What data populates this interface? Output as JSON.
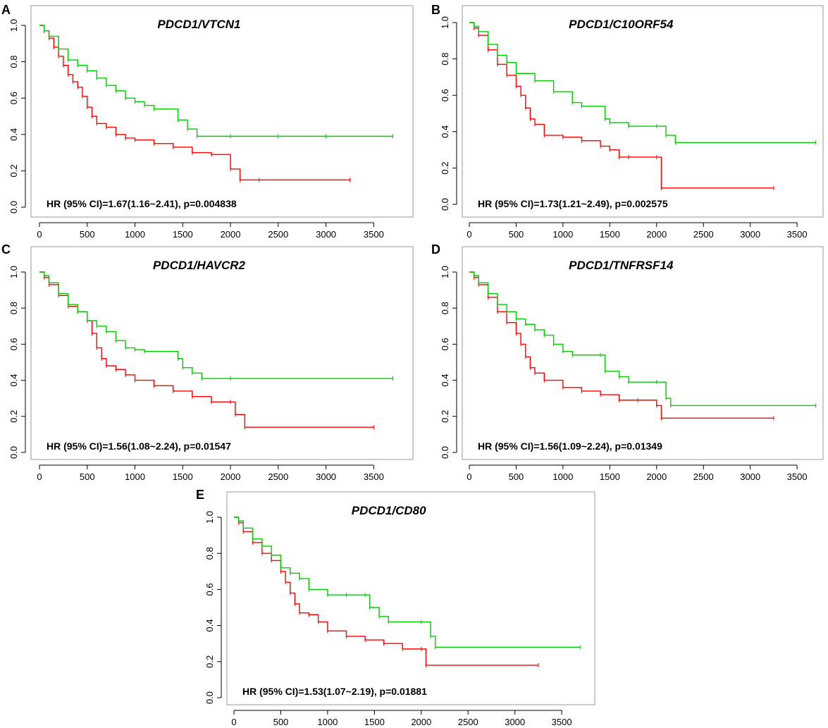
{
  "colors": {
    "high": "#ff0000",
    "low": "#00cc00",
    "axis": "#000000",
    "frame": "#999999"
  },
  "chart_data": [
    {
      "type": "line",
      "panel_label": "A",
      "title": "PDCD1/VTCN1",
      "annotation": "HR (95% CI)=1.67(1.16~2.41), p=0.004838",
      "xlim": [
        0,
        3800
      ],
      "ylim": [
        0,
        1.05
      ],
      "xticks": [
        "0",
        "500",
        "1000",
        "1500",
        "2000",
        "2500",
        "3000",
        "3500"
      ],
      "yticks": [
        "0.0",
        "0.2",
        "0.4",
        "0.6",
        "0.8",
        "1.0"
      ],
      "series": [
        {
          "name": "high",
          "color": "#ff0000",
          "x": [
            0,
            50,
            100,
            150,
            200,
            250,
            300,
            350,
            400,
            450,
            500,
            550,
            600,
            700,
            800,
            900,
            1000,
            1200,
            1400,
            1600,
            1800,
            2000,
            2100,
            2300,
            3250
          ],
          "y": [
            1.0,
            0.97,
            0.93,
            0.88,
            0.83,
            0.78,
            0.73,
            0.69,
            0.66,
            0.61,
            0.55,
            0.5,
            0.46,
            0.44,
            0.4,
            0.38,
            0.37,
            0.35,
            0.33,
            0.3,
            0.29,
            0.21,
            0.15,
            0.15,
            0.15
          ]
        },
        {
          "name": "low",
          "color": "#00cc00",
          "x": [
            0,
            50,
            100,
            200,
            300,
            400,
            500,
            600,
            700,
            800,
            900,
            1000,
            1100,
            1200,
            1450,
            1550,
            1650,
            2000,
            2500,
            3000,
            3700
          ],
          "y": [
            1.0,
            0.97,
            0.94,
            0.87,
            0.81,
            0.78,
            0.75,
            0.71,
            0.67,
            0.64,
            0.6,
            0.58,
            0.56,
            0.54,
            0.48,
            0.43,
            0.39,
            0.39,
            0.39,
            0.39,
            0.39
          ]
        }
      ]
    },
    {
      "type": "line",
      "panel_label": "B",
      "title": "PDCD1/C10ORF54",
      "annotation": "HR (95% CI)=1.73(1.21~2.49), p=0.002575",
      "xlim": [
        0,
        3800
      ],
      "ylim": [
        0,
        1.05
      ],
      "xticks": [
        "0",
        "500",
        "1000",
        "1500",
        "2000",
        "2500",
        "3000",
        "3500"
      ],
      "yticks": [
        "0.0",
        "0.2",
        "0.4",
        "0.6",
        "0.8",
        "1.0"
      ],
      "series": [
        {
          "name": "high",
          "color": "#ff0000",
          "x": [
            0,
            50,
            100,
            200,
            300,
            400,
            500,
            550,
            600,
            650,
            700,
            800,
            1000,
            1200,
            1400,
            1500,
            1600,
            1700,
            2000,
            2050,
            3250
          ],
          "y": [
            1.0,
            0.97,
            0.93,
            0.85,
            0.77,
            0.71,
            0.65,
            0.6,
            0.53,
            0.47,
            0.44,
            0.38,
            0.37,
            0.35,
            0.32,
            0.3,
            0.26,
            0.26,
            0.26,
            0.09,
            0.09
          ]
        },
        {
          "name": "low",
          "color": "#00cc00",
          "x": [
            0,
            50,
            100,
            200,
            300,
            400,
            500,
            700,
            900,
            1100,
            1200,
            1450,
            1500,
            1700,
            2000,
            2100,
            2200,
            3700
          ],
          "y": [
            1.0,
            0.98,
            0.95,
            0.88,
            0.82,
            0.78,
            0.72,
            0.68,
            0.62,
            0.56,
            0.54,
            0.47,
            0.45,
            0.43,
            0.43,
            0.38,
            0.34,
            0.34
          ]
        }
      ]
    },
    {
      "type": "line",
      "panel_label": "C",
      "title": "PDCD1/HAVCR2",
      "annotation": "HR (95% CI)=1.56(1.08~2.24), p=0.01547",
      "xlim": [
        0,
        3800
      ],
      "ylim": [
        0,
        1.05
      ],
      "xticks": [
        "0",
        "500",
        "1000",
        "1500",
        "2000",
        "2500",
        "3000",
        "3500"
      ],
      "yticks": [
        "0.0",
        "0.2",
        "0.4",
        "0.6",
        "0.8",
        "1.0"
      ],
      "series": [
        {
          "name": "high",
          "color": "#ff0000",
          "x": [
            0,
            50,
            100,
            200,
            300,
            400,
            500,
            550,
            600,
            650,
            700,
            800,
            900,
            1000,
            1200,
            1400,
            1600,
            1800,
            2000,
            2050,
            2150,
            3500
          ],
          "y": [
            1.0,
            0.97,
            0.93,
            0.87,
            0.81,
            0.78,
            0.73,
            0.66,
            0.58,
            0.52,
            0.48,
            0.46,
            0.43,
            0.4,
            0.37,
            0.34,
            0.31,
            0.28,
            0.28,
            0.21,
            0.14,
            0.14
          ]
        },
        {
          "name": "low",
          "color": "#00cc00",
          "x": [
            0,
            50,
            100,
            200,
            300,
            400,
            500,
            600,
            700,
            800,
            900,
            1000,
            1100,
            1450,
            1500,
            1600,
            1700,
            2000,
            3700
          ],
          "y": [
            1.0,
            0.98,
            0.94,
            0.88,
            0.82,
            0.78,
            0.73,
            0.7,
            0.67,
            0.62,
            0.58,
            0.57,
            0.56,
            0.52,
            0.47,
            0.44,
            0.41,
            0.41,
            0.41
          ]
        }
      ]
    },
    {
      "type": "line",
      "panel_label": "D",
      "title": "PDCD1/TNFRSF14",
      "annotation": "HR (95% CI)=1.56(1.09~2.24), p=0.01349",
      "xlim": [
        0,
        3800
      ],
      "ylim": [
        0,
        1.05
      ],
      "xticks": [
        "0",
        "500",
        "1000",
        "1500",
        "2000",
        "2500",
        "3000",
        "3500"
      ],
      "yticks": [
        "0.0",
        "0.2",
        "0.4",
        "0.6",
        "0.8",
        "1.0"
      ],
      "series": [
        {
          "name": "high",
          "color": "#ff0000",
          "x": [
            0,
            50,
            100,
            200,
            300,
            400,
            500,
            550,
            600,
            650,
            700,
            800,
            1000,
            1200,
            1400,
            1600,
            1800,
            2000,
            2050,
            3250
          ],
          "y": [
            1.0,
            0.97,
            0.93,
            0.86,
            0.78,
            0.72,
            0.66,
            0.6,
            0.53,
            0.47,
            0.44,
            0.4,
            0.36,
            0.34,
            0.32,
            0.29,
            0.29,
            0.26,
            0.19,
            0.19
          ]
        },
        {
          "name": "low",
          "color": "#00cc00",
          "x": [
            0,
            50,
            100,
            200,
            300,
            400,
            500,
            600,
            700,
            800,
            900,
            1000,
            1100,
            1400,
            1450,
            1600,
            1700,
            2000,
            2100,
            2150,
            3700
          ],
          "y": [
            1.0,
            0.98,
            0.94,
            0.88,
            0.82,
            0.78,
            0.74,
            0.71,
            0.68,
            0.65,
            0.6,
            0.56,
            0.54,
            0.54,
            0.45,
            0.42,
            0.39,
            0.39,
            0.3,
            0.26,
            0.26
          ]
        }
      ]
    },
    {
      "type": "line",
      "panel_label": "E",
      "title": "PDCD1/CD80",
      "annotation": "HR (95% CI)=1.53(1.07~2.19), p=0.01881",
      "xlim": [
        0,
        3800
      ],
      "ylim": [
        0,
        1.05
      ],
      "xticks": [
        "0",
        "500",
        "1000",
        "1500",
        "2000",
        "2500",
        "3000",
        "3500"
      ],
      "yticks": [
        "0.0",
        "0.2",
        "0.4",
        "0.6",
        "0.8",
        "1.0"
      ],
      "series": [
        {
          "name": "high",
          "color": "#ff0000",
          "x": [
            0,
            50,
            100,
            200,
            300,
            400,
            500,
            550,
            600,
            650,
            700,
            800,
            900,
            1000,
            1200,
            1400,
            1600,
            1800,
            2000,
            2050,
            3250
          ],
          "y": [
            1.0,
            0.97,
            0.92,
            0.86,
            0.8,
            0.76,
            0.7,
            0.64,
            0.58,
            0.52,
            0.47,
            0.46,
            0.42,
            0.37,
            0.34,
            0.32,
            0.3,
            0.27,
            0.27,
            0.18,
            0.18
          ]
        },
        {
          "name": "low",
          "color": "#00cc00",
          "x": [
            0,
            50,
            100,
            200,
            300,
            400,
            500,
            600,
            700,
            800,
            1000,
            1200,
            1400,
            1450,
            1550,
            1650,
            2000,
            2100,
            2150,
            3700
          ],
          "y": [
            1.0,
            0.98,
            0.94,
            0.88,
            0.84,
            0.79,
            0.72,
            0.69,
            0.66,
            0.6,
            0.57,
            0.57,
            0.57,
            0.5,
            0.45,
            0.42,
            0.42,
            0.34,
            0.28,
            0.28
          ]
        }
      ]
    }
  ]
}
